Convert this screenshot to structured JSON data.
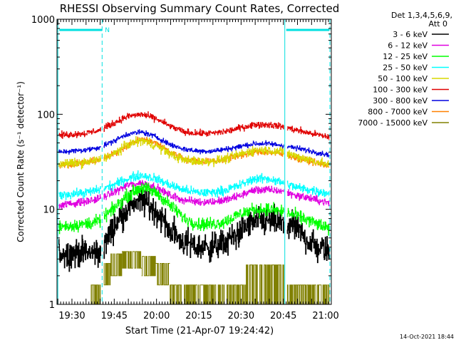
{
  "chart_data": {
    "type": "line",
    "title": "RHESSI Observing Summary Count Rates, Corrected",
    "xlabel": "Start Time (21-Apr-07 19:24:42)",
    "ylabel": "Corrected Count Rate (s⁻¹ detector⁻¹)",
    "yscale": "log",
    "ylim": [
      1,
      1000
    ],
    "xlim_minutes": [
      0,
      97.3
    ],
    "x_ticks": [
      {
        "label": "19:30",
        "m": 5.3
      },
      {
        "label": "19:45",
        "m": 20.3
      },
      {
        "label": "20:00",
        "m": 35.3
      },
      {
        "label": "20:15",
        "m": 50.3
      },
      {
        "label": "20:30",
        "m": 65.3
      },
      {
        "label": "20:45",
        "m": 80.3
      },
      {
        "label": "21:00",
        "m": 95.3
      }
    ],
    "y_ticks": [
      {
        "label": "1",
        "v": 1
      },
      {
        "label": "10",
        "v": 10
      },
      {
        "label": "100",
        "v": 100
      },
      {
        "label": "1000",
        "v": 1000
      }
    ],
    "legend_header": [
      "Det 1,3,4,5,6,9,",
      "Att 0"
    ],
    "timestamp": "14-Oct-2021 18:44",
    "night_marker": "N",
    "series": [
      {
        "name": "3 - 6 keV",
        "color": "#000000",
        "noise": 0.22,
        "x": [
          0,
          16,
          22,
          27,
          31,
          35,
          40,
          45,
          50,
          55,
          60,
          64,
          68,
          72,
          76,
          80,
          84,
          88,
          92,
          97
        ],
        "y": [
          3.5,
          3.5,
          8,
          12,
          12,
          9.5,
          6,
          4.5,
          4,
          4,
          4.5,
          5.5,
          7,
          7.5,
          7.5,
          7,
          6.5,
          5,
          4,
          3.5
        ]
      },
      {
        "name": "6 - 12 keV",
        "color": "#e000e0",
        "noise": 0.06,
        "x": [
          0,
          10,
          15,
          20,
          25,
          30,
          35,
          40,
          45,
          50,
          55,
          60,
          65,
          70,
          75,
          80,
          85,
          90,
          97
        ],
        "y": [
          11,
          12,
          13,
          15,
          18,
          19,
          17,
          14,
          12.5,
          12,
          12,
          12.5,
          14,
          16,
          16,
          15.5,
          14,
          13,
          11.5
        ]
      },
      {
        "name": "12 - 25 keV",
        "color": "#00ff00",
        "noise": 0.1,
        "x": [
          0,
          10,
          15,
          20,
          25,
          30,
          35,
          40,
          45,
          50,
          55,
          60,
          65,
          70,
          75,
          80,
          85,
          90,
          97
        ],
        "y": [
          6.5,
          7,
          7.5,
          10,
          14,
          17,
          15,
          11,
          8,
          7,
          7,
          7.5,
          9,
          10,
          10,
          9.5,
          8.5,
          7.5,
          6
        ]
      },
      {
        "name": "25 - 50 keV",
        "color": "#00ffff",
        "noise": 0.07,
        "x": [
          0,
          10,
          15,
          20,
          25,
          30,
          35,
          40,
          45,
          50,
          55,
          60,
          65,
          70,
          75,
          80,
          85,
          90,
          97
        ],
        "y": [
          14,
          15,
          16,
          18,
          21,
          23,
          21,
          18,
          16,
          15,
          15,
          16,
          18,
          21,
          21,
          19,
          17,
          16,
          14.5
        ]
      },
      {
        "name": "50 - 100 keV",
        "color": "#d8d800",
        "noise": 0.07,
        "x": [
          0,
          10,
          15,
          20,
          25,
          30,
          35,
          40,
          45,
          50,
          55,
          60,
          65,
          70,
          75,
          80,
          85,
          90,
          97
        ],
        "y": [
          30,
          31,
          33,
          38,
          48,
          53,
          47,
          38,
          33,
          32,
          32,
          34,
          38,
          42,
          42,
          40,
          36,
          33,
          29
        ]
      },
      {
        "name": "100 - 300 keV",
        "color": "#e00000",
        "noise": 0.05,
        "x": [
          0,
          10,
          15,
          20,
          25,
          30,
          35,
          40,
          45,
          50,
          55,
          60,
          65,
          70,
          75,
          80,
          85,
          90,
          97
        ],
        "y": [
          60,
          63,
          68,
          80,
          95,
          100,
          90,
          75,
          65,
          63,
          63,
          66,
          72,
          78,
          78,
          74,
          68,
          63,
          57
        ]
      },
      {
        "name": "300 - 800 keV",
        "color": "#0000e0",
        "noise": 0.04,
        "x": [
          0,
          10,
          15,
          20,
          25,
          30,
          35,
          40,
          45,
          50,
          55,
          60,
          65,
          70,
          75,
          80,
          85,
          90,
          97
        ],
        "y": [
          40,
          42,
          45,
          52,
          62,
          65,
          58,
          48,
          43,
          41,
          41,
          43,
          46,
          49,
          49,
          47,
          44,
          41,
          37
        ]
      },
      {
        "name": "800 - 7000 keV",
        "color": "#ff8000",
        "noise": 0.05,
        "x": [
          0,
          10,
          15,
          20,
          25,
          30,
          35,
          40,
          45,
          50,
          55,
          60,
          65,
          70,
          75,
          80,
          85,
          90,
          97
        ],
        "y": [
          29,
          31,
          33,
          38,
          47,
          55,
          50,
          40,
          34,
          32,
          32,
          34,
          37,
          40,
          40,
          38,
          35,
          32,
          28
        ]
      },
      {
        "name": "7000 - 15000 keV",
        "color": "#808000",
        "noise": 0,
        "segments": [
          {
            "x0": 12,
            "x1": 16,
            "lo": 1,
            "hi": 1.6
          },
          {
            "x0": 16,
            "x1": 19,
            "lo": 1.6,
            "hi": 2.7
          },
          {
            "x0": 19,
            "x1": 23,
            "lo": 2.0,
            "hi": 3.4
          },
          {
            "x0": 23,
            "x1": 30,
            "lo": 2.4,
            "hi": 3.6
          },
          {
            "x0": 30,
            "x1": 35,
            "lo": 2.0,
            "hi": 3.2
          },
          {
            "x0": 35,
            "x1": 40,
            "lo": 1.6,
            "hi": 2.7
          },
          {
            "x0": 40,
            "x1": 67,
            "lo": 1.0,
            "hi": 1.6
          },
          {
            "x0": 67,
            "x1": 81,
            "lo": 1.0,
            "hi": 2.6
          },
          {
            "x0": 81,
            "x1": 97,
            "lo": 1.0,
            "hi": 1.6
          }
        ]
      }
    ],
    "gaps": [
      [
        0,
        0.5
      ],
      [
        15.5,
        16.5
      ],
      [
        80.5,
        81.5
      ],
      [
        96.5,
        97.3
      ]
    ],
    "day_night_vlines_minutes": [
      0.3,
      16,
      80.8,
      96.8
    ],
    "night_bars_minutes": [
      [
        0.3,
        16
      ],
      [
        80.8,
        96.8
      ]
    ]
  }
}
